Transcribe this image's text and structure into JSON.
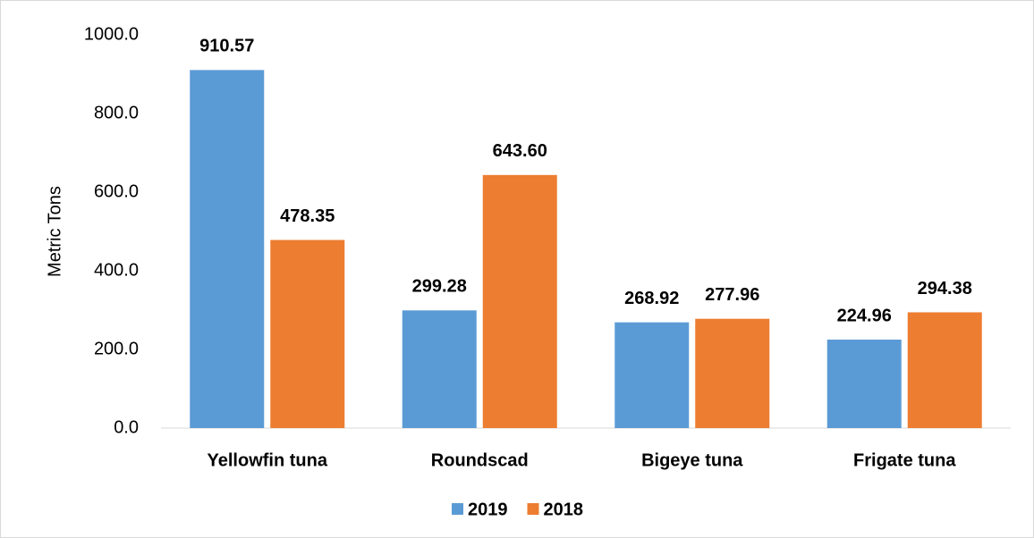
{
  "chart_data": {
    "type": "bar",
    "y_label": "Metric Tons",
    "categories": [
      "Yellowfin tuna",
      "Roundscad",
      "Bigeye tuna",
      "Frigate tuna"
    ],
    "series": [
      {
        "name": "2019",
        "color": "#5b9bd5",
        "values": [
          910.57,
          299.28,
          268.92,
          224.96
        ],
        "value_labels": [
          "910.57",
          "299.28",
          "268.92",
          "224.96"
        ]
      },
      {
        "name": "2018",
        "color": "#ed7d31",
        "values": [
          478.35,
          643.6,
          277.96,
          294.38
        ],
        "value_labels": [
          "478.35",
          "643.60",
          "277.96",
          "294.38"
        ]
      }
    ],
    "ylim": [
      0,
      1000
    ],
    "yticks": [
      {
        "value": 0,
        "label": "0.0"
      },
      {
        "value": 200,
        "label": "200.0"
      },
      {
        "value": 400,
        "label": "400.0"
      },
      {
        "value": 600,
        "label": "600.0"
      },
      {
        "value": 800,
        "label": "800.0"
      },
      {
        "value": 1000,
        "label": "1000.0"
      }
    ],
    "grid": false,
    "legend": "bottom"
  }
}
